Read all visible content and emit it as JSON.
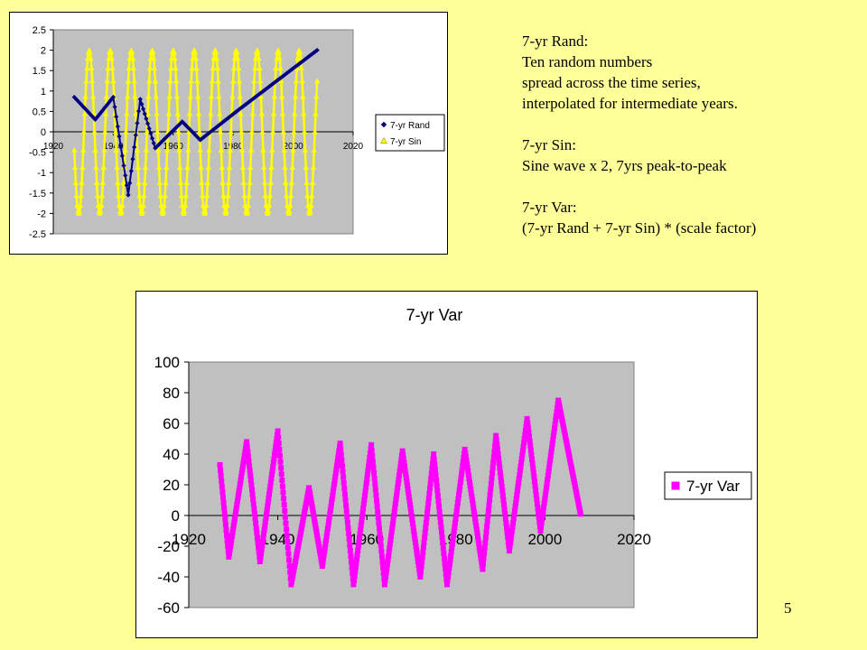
{
  "notes": {
    "rand_heading": "7-yr Rand:",
    "rand_line1": "Ten random numbers",
    "rand_line2": "spread across the time series,",
    "rand_line3": "interpolated for intermediate years.",
    "sin_heading": "7-yr Sin:",
    "sin_line1": "Sine wave x 2, 7yrs peak-to-peak",
    "var_heading": "7-yr Var:",
    "var_line1": "(7-yr Rand + 7-yr Sin) * (scale factor)"
  },
  "slide_number": "5",
  "colors": {
    "page_bg": "#ffff99",
    "plot_bg": "#c0c0c0",
    "rand": "#000080",
    "sin": "#ffff00",
    "var": "#ff00ff"
  },
  "chart_data": [
    {
      "type": "line",
      "title": "",
      "xlabel": "",
      "ylabel": "",
      "xlim": [
        1920,
        2020
      ],
      "ylim": [
        -2.5,
        2.5
      ],
      "x_ticks": [
        1920,
        1940,
        1960,
        1980,
        2000,
        2020
      ],
      "x_tick_labels": [
        "1920",
        "1940",
        "1960",
        "1980",
        "2000",
        "2020"
      ],
      "y_ticks": [
        2.5,
        2,
        1.5,
        1,
        0.5,
        0,
        -0.5,
        -1,
        -1.5,
        -2,
        -2.5
      ],
      "y_tick_labels": [
        "2.5",
        "2",
        "1.5",
        "1",
        "0.5",
        "0",
        "-0.5",
        "-1",
        "-1.5",
        "-2",
        "-2.5"
      ],
      "grid": false,
      "legend_position": "right",
      "series": [
        {
          "name": "7-yr Rand",
          "color": "#000080",
          "marker": "diamond",
          "points": [
            [
              1927,
              0.85
            ],
            [
              1934,
              0.3
            ],
            [
              1940,
              0.85
            ],
            [
              1945,
              -1.55
            ],
            [
              1949,
              0.8
            ],
            [
              1954,
              -0.4
            ],
            [
              1963,
              0.25
            ],
            [
              1969,
              -0.2
            ],
            [
              1982,
              0.55
            ],
            [
              2008,
              2.0
            ]
          ]
        },
        {
          "name": "7-yr Sin",
          "color": "#ffff00",
          "marker": "triangle",
          "x_start": 1927,
          "x_end": 2008,
          "amplitude": 2,
          "period_years": 7,
          "peak_year": 1932
        }
      ]
    },
    {
      "type": "line",
      "title": "7-yr Var",
      "xlabel": "",
      "ylabel": "",
      "xlim": [
        1920,
        2020
      ],
      "ylim": [
        -60,
        100
      ],
      "x_ticks": [
        1920,
        1940,
        1960,
        1980,
        2000,
        2020
      ],
      "x_tick_labels": [
        "1920",
        "1940",
        "1960",
        "1980",
        "2000",
        "2020"
      ],
      "y_ticks": [
        100,
        80,
        60,
        40,
        20,
        0,
        -20,
        -40,
        -60
      ],
      "y_tick_labels": [
        "100",
        "80",
        "60",
        "40",
        "20",
        "0",
        "-20",
        "-40",
        "-60"
      ],
      "grid": false,
      "legend_position": "right",
      "series": [
        {
          "name": "7-yr Var",
          "color": "#ff00ff",
          "marker": "square",
          "points": [
            [
              1927,
              33
            ],
            [
              1929,
              -27
            ],
            [
              1933,
              48
            ],
            [
              1936,
              -30
            ],
            [
              1940,
              55
            ],
            [
              1943,
              -45
            ],
            [
              1947,
              18
            ],
            [
              1950,
              -33
            ],
            [
              1954,
              47
            ],
            [
              1957,
              -45
            ],
            [
              1961,
              46
            ],
            [
              1964,
              -45
            ],
            [
              1968,
              42
            ],
            [
              1972,
              -40
            ],
            [
              1975,
              40
            ],
            [
              1978,
              -45
            ],
            [
              1982,
              43
            ],
            [
              1986,
              -35
            ],
            [
              1989,
              52
            ],
            [
              1992,
              -23
            ],
            [
              1996,
              63
            ],
            [
              1999,
              -10
            ],
            [
              2003,
              75
            ],
            [
              2008,
              1
            ]
          ]
        }
      ]
    }
  ]
}
